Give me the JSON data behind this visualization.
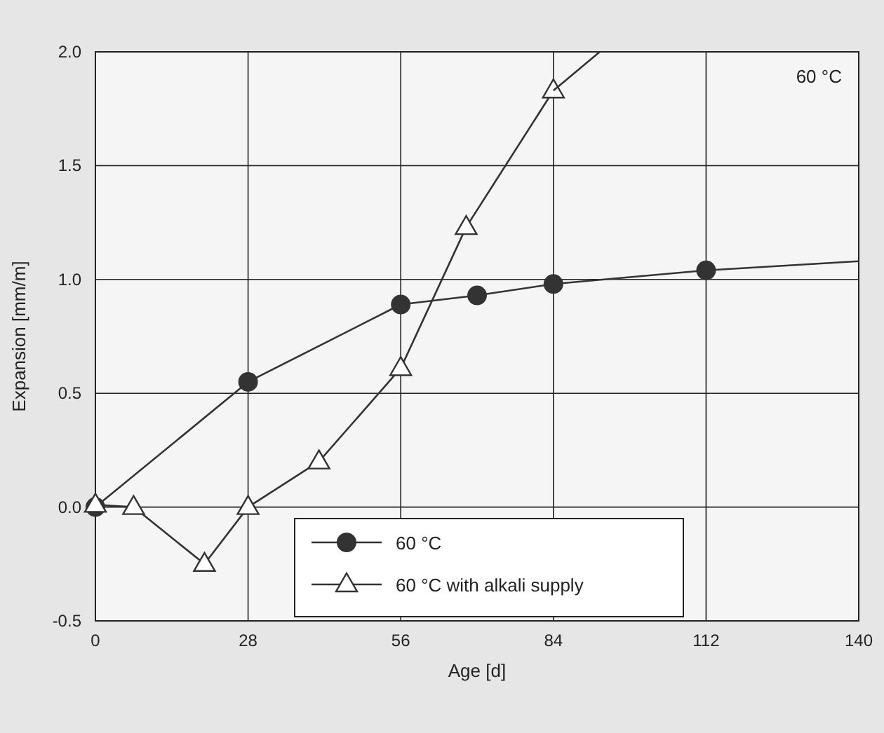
{
  "chart_data": {
    "type": "line",
    "xlabel": "Age [d]",
    "ylabel": "Expansion [mm/m]",
    "annotations": [
      "60 °C"
    ],
    "xlim": [
      0,
      140
    ],
    "xticks": [
      0,
      28,
      56,
      84,
      112,
      140
    ],
    "ylim": [
      -0.5,
      2.0
    ],
    "yticks": [
      {
        "value": -0.5,
        "label": "-0.5"
      },
      {
        "value": 0,
        "label": "0.0"
      },
      {
        "value": 0.5,
        "label": "0.5"
      },
      {
        "value": 1,
        "label": "1.0"
      },
      {
        "value": 1.5,
        "label": "1.5"
      },
      {
        "value": 2,
        "label": "2.0"
      }
    ],
    "grid": true,
    "legend": "bottom",
    "line_style": "solid",
    "series": [
      {
        "name": "60 °C",
        "color": "#333333",
        "marker": "circle",
        "x": [
          0,
          28,
          56,
          70,
          84,
          112
        ],
        "values": [
          0,
          0.55,
          0.89,
          0.93,
          0.98,
          1.04
        ]
      },
      {
        "name": "60 °C with alkali supply",
        "color": "#333333",
        "marker": "triangle",
        "x": [
          0,
          7,
          20,
          28,
          41,
          56,
          68,
          84
        ],
        "values": [
          0.01,
          0,
          -0.25,
          0,
          0.2,
          0.61,
          1.23,
          1.83
        ]
      },
      {
        "color": "#333333",
        "marker": "none",
        "x": [
          112,
          140
        ],
        "values": [
          1.04,
          1.08
        ]
      },
      {
        "color": "#333333",
        "marker": "none",
        "x": [
          84,
          92.5
        ],
        "values": [
          1.83,
          2.0
        ]
      }
    ]
  }
}
